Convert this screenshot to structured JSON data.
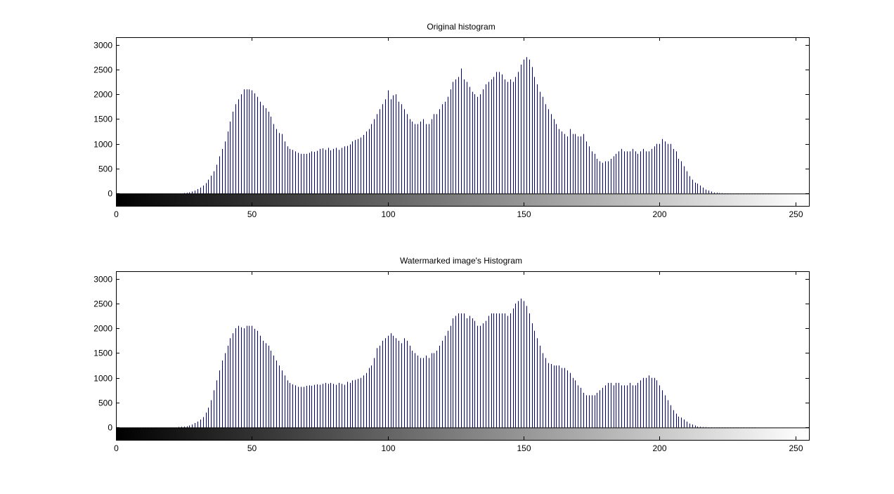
{
  "colors": {
    "background": "#ffffff",
    "bar": "#00007f",
    "axis": "#000000"
  },
  "chart_data": [
    {
      "type": "bar",
      "style": "stem histogram with grayscale colorbar",
      "title": "Original histogram",
      "xlabel": "",
      "ylabel": "",
      "xlim": [
        0,
        255
      ],
      "ylim": [
        -250,
        3150
      ],
      "xticks": [
        0,
        50,
        100,
        150,
        200,
        250
      ],
      "yticks": [
        0,
        500,
        1000,
        1500,
        2000,
        2500,
        3000
      ],
      "grid": false,
      "x_start": 0,
      "values": [
        0,
        0,
        0,
        0,
        0,
        0,
        0,
        0,
        0,
        0,
        0,
        0,
        0,
        0,
        0,
        0,
        0,
        0,
        0,
        0,
        0,
        0,
        0,
        0,
        0,
        10,
        15,
        25,
        40,
        60,
        90,
        120,
        160,
        210,
        280,
        360,
        450,
        580,
        750,
        900,
        1050,
        1250,
        1450,
        1650,
        1800,
        1900,
        2000,
        2100,
        2100,
        2100,
        2080,
        2020,
        1950,
        1850,
        1780,
        1720,
        1650,
        1550,
        1400,
        1300,
        1220,
        1200,
        1050,
        950,
        900,
        880,
        850,
        820,
        800,
        800,
        800,
        820,
        850,
        840,
        860,
        900,
        910,
        880,
        920,
        870,
        900,
        920,
        880,
        920,
        950,
        960,
        990,
        1050,
        1080,
        1100,
        1130,
        1180,
        1250,
        1300,
        1400,
        1500,
        1600,
        1700,
        1800,
        1900,
        2080,
        1900,
        1980,
        2000,
        1850,
        1800,
        1700,
        1600,
        1500,
        1450,
        1400,
        1400,
        1450,
        1500,
        1400,
        1400,
        1500,
        1600,
        1600,
        1700,
        1800,
        1850,
        1950,
        2100,
        2250,
        2300,
        2350,
        2520,
        2300,
        2250,
        2150,
        2050,
        2000,
        1950,
        2000,
        2100,
        2200,
        2250,
        2300,
        2350,
        2450,
        2450,
        2400,
        2300,
        2250,
        2300,
        2250,
        2350,
        2450,
        2600,
        2700,
        2750,
        2700,
        2550,
        2350,
        2200,
        2050,
        1950,
        1800,
        1700,
        1600,
        1500,
        1400,
        1300,
        1250,
        1200,
        1150,
        1300,
        1200,
        1200,
        1150,
        1150,
        1200,
        1050,
        950,
        850,
        800,
        700,
        650,
        620,
        650,
        650,
        700,
        750,
        800,
        850,
        900,
        850,
        850,
        850,
        900,
        850,
        800,
        850,
        900,
        850,
        850,
        900,
        950,
        1000,
        1000,
        1100,
        1050,
        1000,
        1000,
        900,
        850,
        700,
        650,
        550,
        450,
        350,
        280,
        220,
        200,
        160,
        120,
        80,
        60,
        40,
        20,
        15,
        10,
        8,
        5,
        5,
        3,
        3,
        3,
        3,
        3,
        3,
        3,
        3,
        3,
        3,
        3,
        3,
        3,
        3,
        3,
        3,
        0,
        0,
        0,
        0,
        0,
        0,
        0,
        0,
        0,
        0
      ]
    },
    {
      "type": "bar",
      "style": "stem histogram with grayscale colorbar",
      "title": "Watermarked image's Histogram",
      "xlabel": "",
      "ylabel": "",
      "xlim": [
        0,
        255
      ],
      "ylim": [
        -250,
        3150
      ],
      "xticks": [
        0,
        50,
        100,
        150,
        200,
        250
      ],
      "yticks": [
        0,
        500,
        1000,
        1500,
        2000,
        2500,
        3000
      ],
      "grid": false,
      "x_start": 0,
      "values": [
        0,
        0,
        0,
        0,
        0,
        0,
        0,
        0,
        0,
        0,
        0,
        0,
        0,
        0,
        0,
        0,
        0,
        0,
        0,
        0,
        0,
        0,
        0,
        10,
        15,
        20,
        25,
        40,
        60,
        90,
        120,
        160,
        210,
        300,
        400,
        550,
        750,
        950,
        1150,
        1350,
        1500,
        1650,
        1800,
        1900,
        2000,
        2050,
        2020,
        2000,
        2050,
        2050,
        2050,
        1990,
        1950,
        1850,
        1750,
        1700,
        1650,
        1550,
        1450,
        1350,
        1250,
        1150,
        1050,
        950,
        900,
        870,
        850,
        820,
        820,
        820,
        840,
        850,
        840,
        860,
        870,
        860,
        880,
        900,
        880,
        900,
        880,
        860,
        900,
        880,
        860,
        920,
        900,
        950,
        960,
        980,
        1000,
        1050,
        1100,
        1200,
        1250,
        1400,
        1600,
        1650,
        1750,
        1800,
        1850,
        1900,
        1850,
        1800,
        1750,
        1700,
        1800,
        1750,
        1650,
        1550,
        1500,
        1450,
        1400,
        1400,
        1450,
        1400,
        1500,
        1500,
        1550,
        1650,
        1750,
        1850,
        1950,
        2050,
        2200,
        2250,
        2300,
        2300,
        2300,
        2200,
        2250,
        2200,
        2150,
        2050,
        2050,
        2100,
        2150,
        2250,
        2300,
        2300,
        2300,
        2300,
        2300,
        2300,
        2250,
        2300,
        2400,
        2500,
        2550,
        2600,
        2550,
        2450,
        2300,
        2100,
        1950,
        1800,
        1650,
        1500,
        1400,
        1300,
        1280,
        1250,
        1250,
        1250,
        1200,
        1200,
        1150,
        1100,
        1000,
        950,
        850,
        800,
        700,
        650,
        650,
        650,
        650,
        700,
        750,
        800,
        850,
        900,
        900,
        850,
        900,
        900,
        850,
        850,
        850,
        900,
        850,
        850,
        900,
        950,
        1000,
        1000,
        1050,
        1000,
        1000,
        950,
        850,
        750,
        650,
        550,
        450,
        350,
        280,
        220,
        200,
        160,
        120,
        80,
        60,
        40,
        20,
        15,
        10,
        8,
        5,
        5,
        3,
        3,
        3,
        3,
        3,
        3,
        3,
        3,
        3,
        3,
        3,
        3,
        3,
        3,
        3,
        3,
        0,
        0,
        0,
        0,
        0,
        0,
        0,
        0,
        0,
        0
      ]
    }
  ]
}
